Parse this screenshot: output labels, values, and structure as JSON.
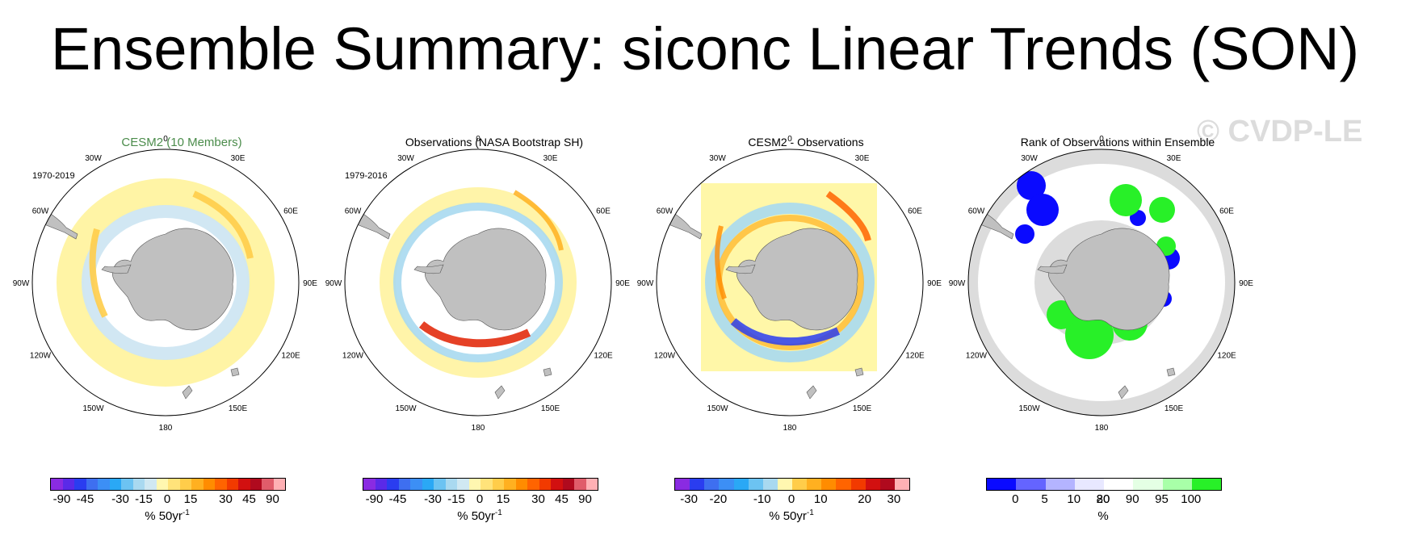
{
  "title": "Ensemble Summary: siconc Linear Trends (SON)",
  "watermark": "© CVDP-LE",
  "map_labels": [
    "0",
    "30E",
    "60E",
    "90E",
    "120E",
    "150E",
    "180",
    "150W",
    "120W",
    "90W",
    "60W",
    "30W"
  ],
  "chart_data": [
    {
      "type": "heatmap",
      "title": "CESM2 (10 Members)",
      "period": "1970-2019",
      "projection": "south polar stereographic",
      "colorbar": {
        "ticks": [
          "-90",
          "-45",
          "-30",
          "-15",
          "0",
          "15",
          "30",
          "45",
          "90"
        ],
        "units": "% 50yr",
        "units_exp": "-1",
        "colors": [
          "#8a2be2",
          "#5a2ae8",
          "#2a3df0",
          "#3e6ff0",
          "#3c8ff5",
          "#2aa8f5",
          "#6cc3f2",
          "#a9d9f0",
          "#d0e8f2",
          "#fff7b0",
          "#ffe37a",
          "#ffcd4a",
          "#ffb020",
          "#ff8c00",
          "#ff6400",
          "#f23a00",
          "#d21010",
          "#b00a1e",
          "#e05c6a",
          "#ffb0b4"
        ]
      }
    },
    {
      "type": "heatmap",
      "title": "Observations (NASA Bootstrap SH)",
      "period": "1979-2016",
      "projection": "south polar stereographic",
      "colorbar": {
        "ticks": [
          "-90",
          "-45",
          "-30",
          "-15",
          "0",
          "15",
          "30",
          "45",
          "90"
        ],
        "units": "% 50yr",
        "units_exp": "-1",
        "colors": [
          "#8a2be2",
          "#5a2ae8",
          "#2a3df0",
          "#3e6ff0",
          "#3c8ff5",
          "#2aa8f5",
          "#6cc3f2",
          "#a9d9f0",
          "#d0e8f2",
          "#fff7b0",
          "#ffe37a",
          "#ffcd4a",
          "#ffb020",
          "#ff8c00",
          "#ff6400",
          "#f23a00",
          "#d21010",
          "#b00a1e",
          "#e05c6a",
          "#ffb0b4"
        ]
      }
    },
    {
      "type": "heatmap",
      "title": "CESM2 - Observations",
      "period": "",
      "projection": "south polar stereographic",
      "colorbar": {
        "ticks": [
          "-30",
          "-20",
          "-10",
          "0",
          "10",
          "20",
          "30"
        ],
        "units": "% 50yr",
        "units_exp": "-1",
        "colors": [
          "#8a2be2",
          "#2a3df0",
          "#3e6ff0",
          "#3c8ff5",
          "#2aa8f5",
          "#6cc3f2",
          "#a9d9f0",
          "#fff7b0",
          "#ffcd4a",
          "#ffb020",
          "#ff8c00",
          "#ff6400",
          "#f23a00",
          "#d21010",
          "#b00a1e",
          "#ffb0b4"
        ]
      }
    },
    {
      "type": "heatmap",
      "title": "Rank of Observations within Ensemble",
      "period": "",
      "projection": "south polar stereographic",
      "colorbar": {
        "ticks": [
          "0",
          "5",
          "10",
          "20",
          "80",
          "90",
          "95",
          "100"
        ],
        "units": "%",
        "units_exp": "",
        "colors": [
          "#0a0aff",
          "#6464ff",
          "#b4b4ff",
          "#e8e8ff",
          "#ffffff",
          "#e4ffe4",
          "#a8ffa8",
          "#28f028"
        ]
      }
    }
  ]
}
